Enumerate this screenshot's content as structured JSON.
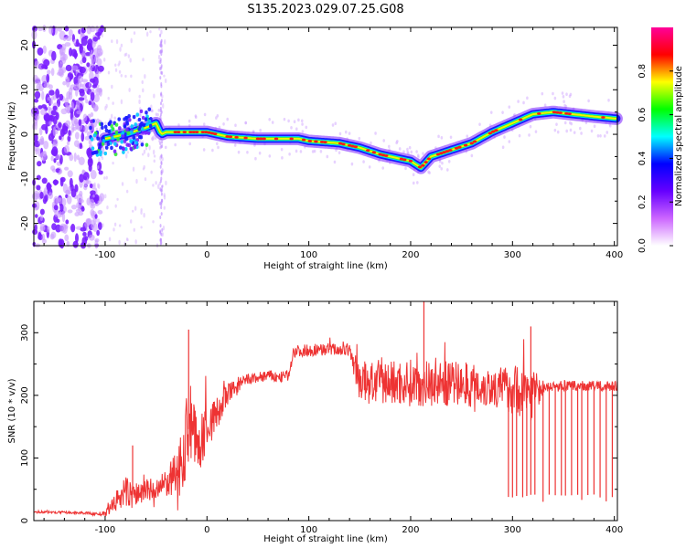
{
  "title": "S135.2023.029.07.25.G08",
  "chart_data": [
    {
      "type": "heatmap",
      "xlabel": "Height of straight line (km)",
      "ylabel": "Frequency (Hz)",
      "xlim": [
        -170,
        403
      ],
      "ylim": [
        -25,
        24
      ],
      "xticks": [
        -100,
        0,
        100,
        200,
        300,
        400
      ],
      "yticks": [
        -20,
        -10,
        0,
        10,
        20
      ],
      "colorbar": {
        "label": "Normalized spectral amplitude",
        "range": [
          0,
          1
        ],
        "ticks": [
          "0.0",
          "0.2",
          "0.4",
          "0.6",
          "0.8"
        ],
        "colors": [
          "#ffffff",
          "#cc66ff",
          "#6600ff",
          "#0000ff",
          "#00ffff",
          "#00ff00",
          "#ffff00",
          "#ff0000",
          "#ff0099"
        ]
      },
      "ridge": {
        "x": [
          -100,
          -80,
          -60,
          -50,
          -45,
          -40,
          -20,
          0,
          20,
          50,
          90,
          100,
          130,
          150,
          170,
          190,
          200,
          210,
          220,
          240,
          260,
          280,
          300,
          320,
          340,
          380,
          403
        ],
        "y": [
          -1,
          0,
          1.5,
          2.5,
          0,
          0.5,
          0.5,
          0.5,
          -0.5,
          -1,
          -1,
          -1.5,
          -2,
          -3,
          -4.5,
          -5.5,
          -6,
          -7.5,
          -5,
          -3.5,
          -2,
          0.5,
          2.5,
          4.5,
          5,
          4,
          3.5
        ]
      },
      "noise_region": {
        "x": [
          -170,
          -115
        ],
        "y": [
          -25,
          24
        ]
      },
      "grid": false,
      "legend": "colorbar-right"
    },
    {
      "type": "line",
      "xlabel": "Height of straight line (km)",
      "ylabel": "SNR (10 * v/v)",
      "xlim": [
        -170,
        403
      ],
      "ylim": [
        0,
        350
      ],
      "xticks": [
        -100,
        0,
        100,
        200,
        300,
        400
      ],
      "yticks": [
        0,
        100,
        200,
        300
      ],
      "color": "#ee3333",
      "series": [
        {
          "x": [
            -170,
            -120,
            -100,
            -90,
            -80,
            -70,
            -60,
            -50,
            -40,
            -30,
            -20,
            -15,
            -10,
            0,
            10,
            20,
            30,
            40,
            50,
            60,
            70,
            80,
            85,
            100,
            120,
            140,
            150,
            160,
            200,
            250,
            290,
            300,
            320,
            330,
            340,
            380,
            403
          ],
          "values": [
            14,
            12,
            10,
            30,
            45,
            40,
            50,
            45,
            60,
            70,
            130,
            170,
            110,
            150,
            170,
            200,
            215,
            225,
            228,
            232,
            228,
            232,
            270,
            272,
            274,
            272,
            222,
            220,
            220,
            218,
            212,
            210,
            205,
            210,
            215,
            215,
            215
          ],
          "noise": [
            2,
            2,
            4,
            16,
            26,
            22,
            20,
            20,
            22,
            40,
            70,
            70,
            45,
            40,
            28,
            20,
            14,
            10,
            9,
            9,
            9,
            9,
            10,
            10,
            10,
            10,
            32,
            36,
            38,
            36,
            34,
            40,
            46,
            8,
            8,
            8,
            8
          ]
        }
      ],
      "spikes": [
        {
          "x": -18,
          "y": 305
        },
        {
          "x": -73,
          "y": 120
        },
        {
          "x": 213,
          "y": 350
        },
        {
          "x": 318,
          "y": 310
        }
      ],
      "dropouts": {
        "x": [
          296,
          300,
          304,
          310,
          314,
          318,
          322,
          330,
          336,
          342,
          348,
          352,
          358,
          364,
          368,
          374,
          380,
          386,
          392,
          398
        ],
        "min": 28
      },
      "grid": false
    }
  ]
}
